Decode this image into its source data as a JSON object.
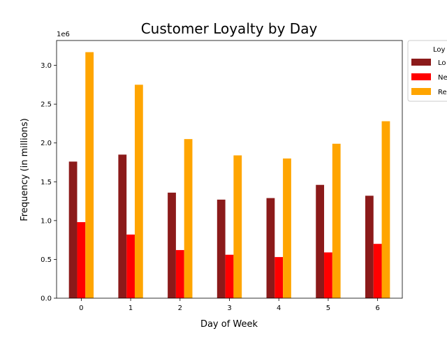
{
  "chart_data": {
    "type": "bar",
    "title": "Customer Loyalty by Day",
    "xlabel": "Day of Week",
    "ylabel": "Frequency (in millions)",
    "offset_label": "1e6",
    "categories": [
      "0",
      "1",
      "2",
      "3",
      "4",
      "5",
      "6"
    ],
    "ylim": [
      0,
      3320000
    ],
    "yticks": [
      0,
      500000,
      1000000,
      1500000,
      2000000,
      2500000,
      3000000
    ],
    "ytick_labels": [
      "0.0",
      "0.5",
      "1.0",
      "1.5",
      "2.0",
      "2.5",
      "3.0"
    ],
    "grid": false,
    "legend": {
      "title": "Loy",
      "placement": "outside-top-right",
      "entry_labels": [
        "Lo",
        "Ne",
        "Re"
      ]
    },
    "series": [
      {
        "name": "Lo",
        "color": "#8b1a1a",
        "values": [
          1760000,
          1850000,
          1360000,
          1270000,
          1290000,
          1460000,
          1320000
        ]
      },
      {
        "name": "Ne",
        "color": "#ff0000",
        "values": [
          980000,
          820000,
          620000,
          560000,
          530000,
          590000,
          700000
        ]
      },
      {
        "name": "Re",
        "color": "#ffa500",
        "values": [
          3170000,
          2750000,
          2050000,
          1840000,
          1800000,
          1990000,
          2280000
        ]
      }
    ]
  }
}
